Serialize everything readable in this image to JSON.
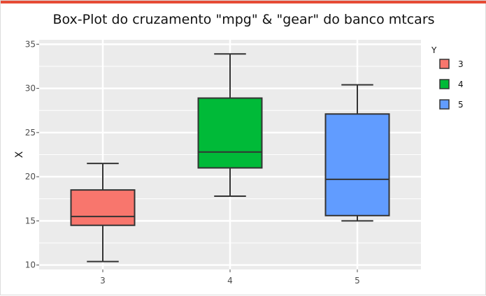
{
  "title": "Box-Plot do cruzamento \"mpg\" & \"gear\" do banco mtcars",
  "accent_color": "#e64b35",
  "chart_data": {
    "type": "box",
    "title": "Box-Plot do cruzamento \"mpg\" & \"gear\" do banco mtcars",
    "xlabel": "",
    "ylabel": "X",
    "ylim": [
      9.5,
      35.5
    ],
    "yticks": [
      10,
      15,
      20,
      25,
      30,
      35
    ],
    "categories": [
      "3",
      "4",
      "5"
    ],
    "grid": true,
    "background": "#ebebeb",
    "legend": {
      "title": "Y",
      "position": "right",
      "entries": [
        {
          "label": "3",
          "color": "#f8766d"
        },
        {
          "label": "4",
          "color": "#00ba38"
        },
        {
          "label": "5",
          "color": "#619cff"
        }
      ]
    },
    "boxes": [
      {
        "category": "3",
        "min": 10.4,
        "q1": 14.5,
        "median": 15.5,
        "q3": 18.5,
        "max": 21.5,
        "color": "#f8766d"
      },
      {
        "category": "4",
        "min": 17.8,
        "q1": 21.0,
        "median": 22.8,
        "q3": 28.9,
        "max": 33.9,
        "color": "#00ba38"
      },
      {
        "category": "5",
        "min": 15.0,
        "q1": 15.6,
        "median": 19.7,
        "q3": 27.1,
        "max": 30.4,
        "color": "#619cff"
      }
    ]
  }
}
